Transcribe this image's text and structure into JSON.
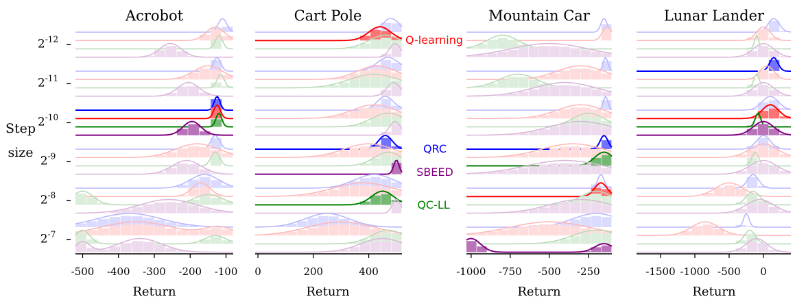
{
  "figure": {
    "ylabel_lines": [
      "Step",
      "size"
    ],
    "step_sizes": [
      "2^-12",
      "2^-11",
      "2^-10",
      "2^-9",
      "2^-8",
      "2^-7"
    ],
    "xlabel": "Return"
  },
  "legend": [
    {
      "name": "Q-learning",
      "color": "#ff0000"
    },
    {
      "name": "QRC",
      "color": "#0000ff"
    },
    {
      "name": "SBEED",
      "color": "#800080"
    },
    {
      "name": "QC-LL",
      "color": "#008000"
    }
  ],
  "series_colors": {
    "QRC": "#0000ff",
    "Q-learning": "#ff0000",
    "QC-LL": "#008000",
    "SBEED": "#800080"
  },
  "chart_data": [
    {
      "type": "area",
      "title": "Acrobot",
      "xlabel": "Return",
      "xlim": [
        -520,
        -80
      ],
      "xticks": [
        -500,
        -400,
        -300,
        -200,
        -100
      ],
      "tick_labels": [
        "-500",
        "-400",
        "-300",
        "-200",
        "-100"
      ],
      "y_categories": [
        "2^-12",
        "2^-11",
        "2^-10",
        "2^-9",
        "2^-8",
        "2^-7"
      ],
      "highlight": {
        "2^-10": [
          "QRC",
          "Q-learning",
          "QC-LL",
          "SBEED"
        ]
      },
      "distributions": {
        "2^-12": {
          "QRC": [
            [
              -110,
              12,
              1
            ]
          ],
          "Q-learning": [
            [
              -130,
              25,
              1
            ]
          ],
          "QC-LL": [
            [
              -120,
              10,
              1
            ]
          ],
          "SBEED": [
            [
              -255,
              30,
              1
            ]
          ]
        },
        "2^-11": {
          "QRC": [
            [
              -125,
              10,
              1
            ]
          ],
          "Q-learning": [
            [
              -150,
              40,
              1
            ]
          ],
          "QC-LL": [
            [
              -115,
              10,
              1
            ]
          ],
          "SBEED": [
            [
              -205,
              30,
              1
            ]
          ]
        },
        "2^-10": {
          "QRC": [
            [
              -125,
              8,
              1
            ]
          ],
          "Q-learning": [
            [
              -125,
              9,
              1
            ]
          ],
          "QC-LL": [
            [
              -120,
              8,
              1
            ]
          ],
          "SBEED": [
            [
              -195,
              25,
              1
            ]
          ]
        },
        "2^-9": {
          "QRC": [
            [
              -130,
              12,
              1
            ]
          ],
          "Q-learning": [
            [
              -180,
              60,
              1
            ]
          ],
          "QC-LL": [
            [
              -130,
              12,
              1
            ]
          ],
          "SBEED": [
            [
              -210,
              40,
              1
            ]
          ]
        },
        "2^-8": {
          "QRC": [
            [
              -160,
              40,
              1
            ]
          ],
          "Q-learning": [
            [
              -170,
              25,
              1
            ]
          ],
          "QC-LL": [
            [
              -500,
              30,
              0.8
            ],
            [
              -150,
              40,
              0.6
            ]
          ],
          "SBEED": [
            [
              -260,
              80,
              1
            ]
          ]
        },
        "2^-7": {
          "QRC": [
            [
              -370,
              90,
              1
            ]
          ],
          "Q-learning": [
            [
              -350,
              100,
              0.5
            ],
            [
              -120,
              40,
              0.3
            ]
          ],
          "QC-LL": [
            [
              -500,
              20,
              1
            ],
            [
              -130,
              30,
              0.6
            ]
          ],
          "SBEED": [
            [
              -500,
              20,
              0.6
            ],
            [
              -340,
              60,
              0.8
            ]
          ]
        }
      }
    },
    {
      "type": "area",
      "title": "Cart Pole",
      "xlabel": "Return",
      "xlim": [
        -10,
        520
      ],
      "xticks": [
        0,
        200,
        400
      ],
      "tick_labels": [
        "0",
        "200",
        "400"
      ],
      "y_categories": [
        "2^-12",
        "2^-11",
        "2^-10",
        "2^-9",
        "2^-8",
        "2^-7"
      ],
      "highlight": {
        "2^-12": [
          "Q-learning"
        ],
        "2^-9": [
          "QRC",
          "SBEED"
        ],
        "2^-8": [
          "QC-LL"
        ]
      },
      "distributions": {
        "2^-12": {
          "QRC": [
            [
              480,
              30,
              1
            ]
          ],
          "Q-learning": [
            [
              440,
              40,
              1
            ]
          ],
          "QC-LL": [
            [
              460,
              60,
              1
            ]
          ],
          "SBEED": [
            [
              495,
              20,
              1
            ]
          ]
        },
        "2^-11": {
          "QRC": [
            [
              470,
              40,
              1
            ]
          ],
          "Q-learning": [
            [
              430,
              70,
              1
            ]
          ],
          "QC-LL": [
            [
              420,
              90,
              1
            ]
          ],
          "SBEED": [
            [
              490,
              25,
              1
            ]
          ]
        },
        "2^-10": {
          "QRC": [
            [
              460,
              30,
              1
            ]
          ],
          "Q-learning": [
            [
              420,
              80,
              1
            ]
          ],
          "QC-LL": [
            [
              470,
              60,
              1
            ]
          ],
          "SBEED": [
            [
              495,
              20,
              1
            ]
          ]
        },
        "2^-9": {
          "QRC": [
            [
              460,
              25,
              1
            ]
          ],
          "Q-learning": [
            [
              400,
              90,
              1
            ]
          ],
          "QC-LL": [
            [
              470,
              50,
              1
            ]
          ],
          "SBEED": [
            [
              500,
              10,
              1
            ]
          ]
        },
        "2^-8": {
          "QRC": [
            [
              420,
              70,
              1
            ]
          ],
          "Q-learning": [
            [
              380,
              110,
              1
            ]
          ],
          "QC-LL": [
            [
              450,
              40,
              1
            ]
          ],
          "SBEED": [
            [
              500,
              15,
              1
            ]
          ]
        },
        "2^-7": {
          "QRC": [
            [
              250,
              80,
              1
            ]
          ],
          "Q-learning": [
            [
              300,
              120,
              1
            ]
          ],
          "QC-LL": [
            [
              470,
              60,
              1
            ]
          ],
          "SBEED": [
            [
              450,
              80,
              1
            ]
          ]
        }
      }
    },
    {
      "type": "area",
      "title": "Mountain Car",
      "xlabel": "Return",
      "xlim": [
        -1030,
        -100
      ],
      "xticks": [
        -1000,
        -750,
        -500,
        -250
      ],
      "tick_labels": [
        "-1000",
        "-750",
        "-500",
        "-250"
      ],
      "y_categories": [
        "2^-12",
        "2^-11",
        "2^-10",
        "2^-9",
        "2^-8",
        "2^-7"
      ],
      "highlight": {
        "2^-9": [
          "QRC",
          "QC-LL"
        ],
        "2^-8": [
          "Q-learning"
        ],
        "2^-7": [
          "SBEED"
        ]
      },
      "distributions": {
        "2^-12": {
          "QRC": [
            [
              -150,
              20,
              1
            ]
          ],
          "Q-learning": [
            [
              -130,
              30,
              1
            ]
          ],
          "QC-LL": [
            [
              -800,
              100,
              1
            ]
          ],
          "SBEED": [
            [
              -500,
              250,
              1
            ]
          ]
        },
        "2^-11": {
          "QRC": [
            [
              -140,
              15,
              1
            ]
          ],
          "Q-learning": [
            [
              -300,
              150,
              1
            ]
          ],
          "QC-LL": [
            [
              -700,
              120,
              1
            ]
          ],
          "SBEED": [
            [
              -400,
              200,
              1
            ]
          ]
        },
        "2^-10": {
          "QRC": [
            [
              -140,
              15,
              1
            ]
          ],
          "Q-learning": [
            [
              -300,
              150,
              1
            ]
          ],
          "QC-LL": [
            [
              -250,
              100,
              1
            ]
          ],
          "SBEED": [
            [
              -300,
              200,
              1
            ]
          ]
        },
        "2^-9": {
          "QRC": [
            [
              -150,
              25,
              1
            ]
          ],
          "Q-learning": [
            [
              -350,
              200,
              1
            ]
          ],
          "QC-LL": [
            [
              -150,
              60,
              1
            ]
          ],
          "SBEED": [
            [
              -400,
              250,
              1
            ]
          ]
        },
        "2^-8": {
          "QRC": [
            [
              -170,
              20,
              1
            ]
          ],
          "Q-learning": [
            [
              -170,
              40,
              1
            ]
          ],
          "QC-LL": [
            [
              -200,
              100,
              1
            ]
          ],
          "SBEED": [
            [
              -300,
              200,
              1
            ]
          ]
        },
        "2^-7": {
          "QRC": [
            [
              -200,
              150,
              1
            ]
          ],
          "Q-learning": [
            [
              -500,
              250,
              1
            ]
          ],
          "QC-LL": [
            [
              -200,
              150,
              1
            ]
          ],
          "SBEED": [
            [
              -1000,
              60,
              0.8
            ],
            [
              -150,
              60,
              0.5
            ]
          ]
        }
      }
    },
    {
      "type": "area",
      "title": "Lunar Lander",
      "xlabel": "Return",
      "xlim": [
        -1850,
        400
      ],
      "xticks": [
        -1500,
        -1000,
        -500,
        0
      ],
      "tick_labels": [
        "-1500",
        "-1000",
        "-500",
        "0"
      ],
      "y_categories": [
        "2^-12",
        "2^-11",
        "2^-10",
        "2^-9",
        "2^-8",
        "2^-7"
      ],
      "highlight": {
        "2^-11": [
          "QRC"
        ],
        "2^-10": [
          "Q-learning",
          "QC-LL",
          "SBEED"
        ]
      },
      "distributions": {
        "2^-12": {
          "QRC": [
            [
              150,
              80,
              1
            ]
          ],
          "Q-learning": [
            [
              0,
              100,
              1
            ]
          ],
          "QC-LL": [
            [
              -100,
              30,
              1
            ]
          ],
          "SBEED": [
            [
              0,
              150,
              1
            ]
          ]
        },
        "2^-11": {
          "QRC": [
            [
              150,
              60,
              1
            ]
          ],
          "Q-learning": [
            [
              50,
              100,
              1
            ]
          ],
          "QC-LL": [
            [
              -100,
              40,
              1
            ]
          ],
          "SBEED": [
            [
              0,
              150,
              1
            ]
          ]
        },
        "2^-10": {
          "QRC": [
            [
              100,
              120,
              1
            ]
          ],
          "Q-learning": [
            [
              100,
              120,
              1
            ]
          ],
          "QC-LL": [
            [
              -80,
              40,
              1
            ]
          ],
          "SBEED": [
            [
              0,
              150,
              1
            ]
          ]
        },
        "2^-9": {
          "QRC": [
            [
              0,
              100,
              1
            ]
          ],
          "Q-learning": [
            [
              0,
              200,
              1
            ]
          ],
          "QC-LL": [
            [
              -120,
              50,
              1
            ]
          ],
          "SBEED": [
            [
              0,
              200,
              1
            ]
          ]
        },
        "2^-8": {
          "QRC": [
            [
              -150,
              80,
              1
            ]
          ],
          "Q-learning": [
            [
              -500,
              200,
              1
            ]
          ],
          "QC-LL": [
            [
              -150,
              100,
              1
            ]
          ],
          "SBEED": [
            [
              -50,
              200,
              1
            ]
          ]
        },
        "2^-7": {
          "QRC": [
            [
              -250,
              40,
              1
            ]
          ],
          "Q-learning": [
            [
              -850,
              200,
              1
            ]
          ],
          "QC-LL": [
            [
              -200,
              80,
              1
            ]
          ],
          "SBEED": [
            [
              -100,
              150,
              1
            ]
          ]
        }
      }
    }
  ]
}
